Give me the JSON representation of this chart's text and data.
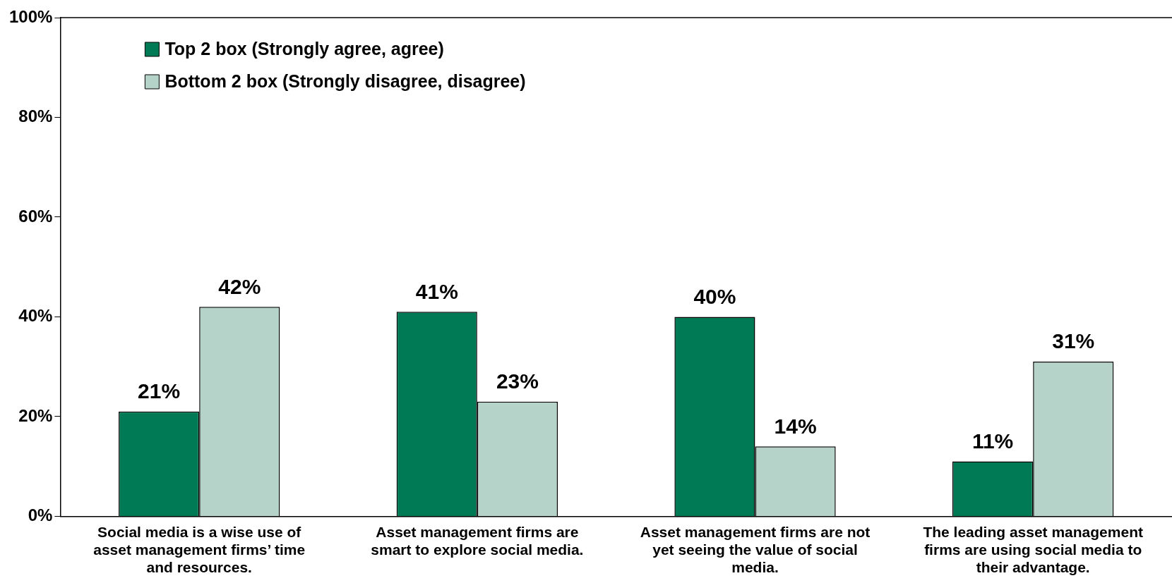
{
  "chart_data": {
    "type": "bar",
    "categories": [
      "Social media is a wise use of asset management firms’ time and resources.",
      "Asset management firms are smart to explore social media.",
      "Asset management firms are not yet seeing the value of social media.",
      "The leading asset management firms are using social media to their advantage."
    ],
    "series": [
      {
        "name": "Top 2 box (Strongly agree, agree)",
        "color": "#007a55",
        "values": [
          21,
          41,
          40,
          11
        ],
        "value_labels": [
          "21%",
          "41%",
          "40%",
          "11%"
        ]
      },
      {
        "name": "Bottom 2 box (Strongly disagree, disagree)",
        "color": "#b5d3c9",
        "values": [
          42,
          23,
          14,
          31
        ],
        "value_labels": [
          "42%",
          "23%",
          "14%",
          "31%"
        ]
      }
    ],
    "ylim": [
      0,
      100
    ],
    "yticks": [
      {
        "value": 0,
        "label": "0%"
      },
      {
        "value": 20,
        "label": "20%"
      },
      {
        "value": 40,
        "label": "40%"
      },
      {
        "value": 60,
        "label": "60%"
      },
      {
        "value": 80,
        "label": "80%"
      },
      {
        "value": 100,
        "label": "100%"
      }
    ],
    "grid": false,
    "legend": "top left"
  }
}
